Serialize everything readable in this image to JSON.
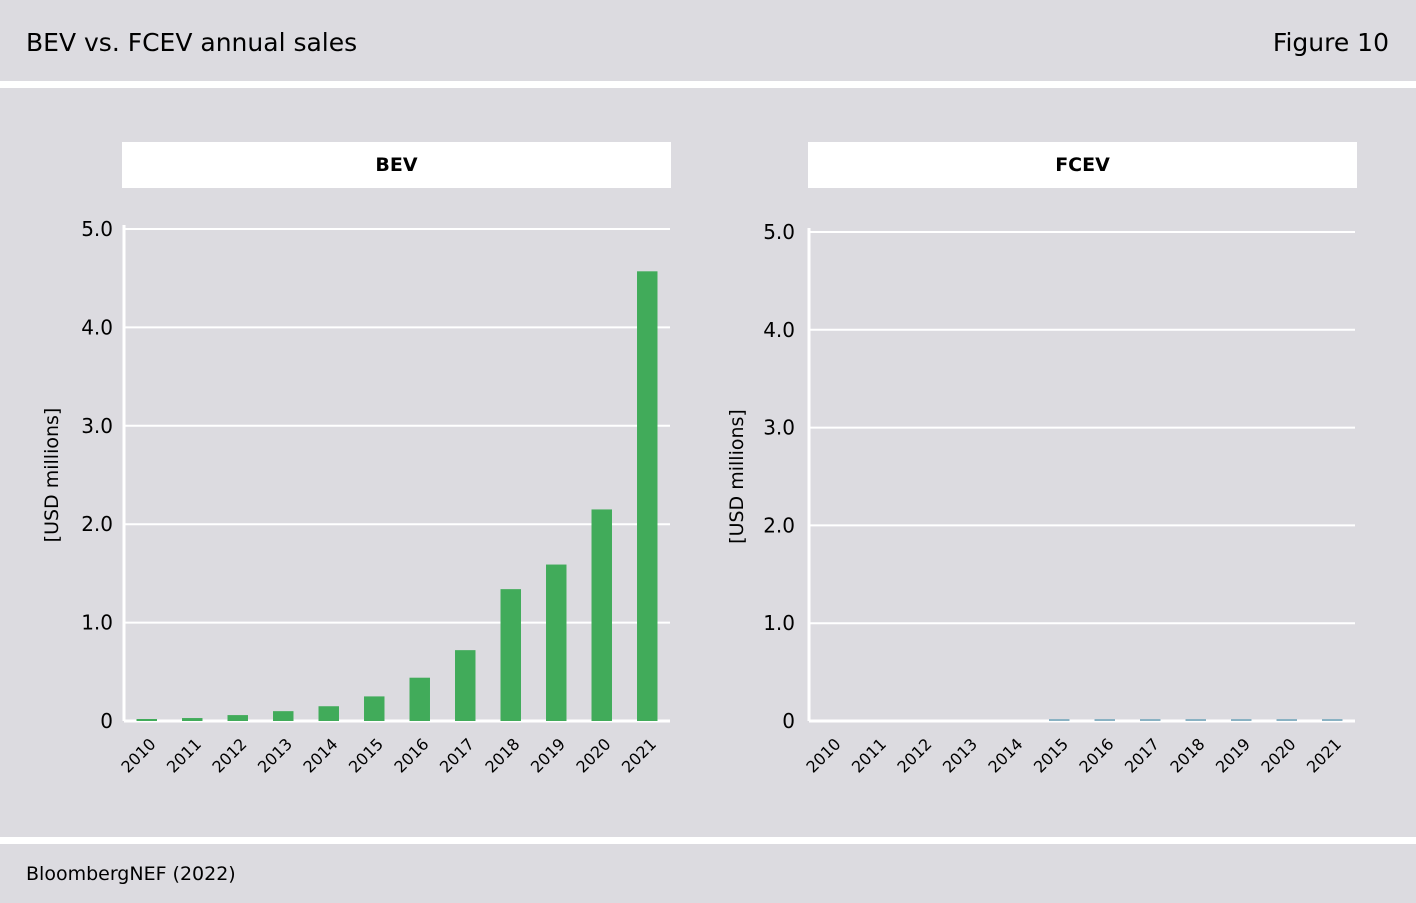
{
  "header": {
    "title": "BEV vs. FCEV annual sales",
    "figure": "Figure 10"
  },
  "footer": {
    "source": "BloombergNEF (2022)"
  },
  "colors": {
    "band": "#dcdbe0",
    "bev_bar": "#41ab5a",
    "fcev_bar": "#8ab2c3",
    "grid": "#ffffff"
  },
  "chart_data": [
    {
      "type": "bar",
      "title": "BEV",
      "ylabel": "[USD millions]",
      "xlabel": "",
      "ylim": [
        0,
        5
      ],
      "yticks": [
        0,
        1,
        2,
        3,
        4,
        5
      ],
      "ytick_labels": [
        "0",
        "1.0",
        "2.0",
        "3.0",
        "4.0",
        "5.0"
      ],
      "grid": true,
      "categories": [
        "2010",
        "2011",
        "2012",
        "2013",
        "2014",
        "2015",
        "2016",
        "2017",
        "2018",
        "2019",
        "2020",
        "2021"
      ],
      "values": [
        0.02,
        0.03,
        0.06,
        0.1,
        0.15,
        0.25,
        0.44,
        0.72,
        1.34,
        1.59,
        2.15,
        4.57
      ],
      "color": "#41ab5a"
    },
    {
      "type": "bar",
      "title": "FCEV",
      "ylabel": "[USD millions]",
      "xlabel": "",
      "ylim": [
        0,
        5
      ],
      "yticks": [
        0,
        1,
        2,
        3,
        4,
        5
      ],
      "ytick_labels": [
        "0",
        "1.0",
        "2.0",
        "3.0",
        "4.0",
        "5.0"
      ],
      "grid": true,
      "categories": [
        "2010",
        "2011",
        "2012",
        "2013",
        "2014",
        "2015",
        "2016",
        "2017",
        "2018",
        "2019",
        "2020",
        "2021"
      ],
      "values": [
        0,
        0,
        0,
        0,
        0,
        0.01,
        0.01,
        0.01,
        0.01,
        0.01,
        0.01,
        0.01
      ],
      "color": "#8ab2c3"
    }
  ]
}
